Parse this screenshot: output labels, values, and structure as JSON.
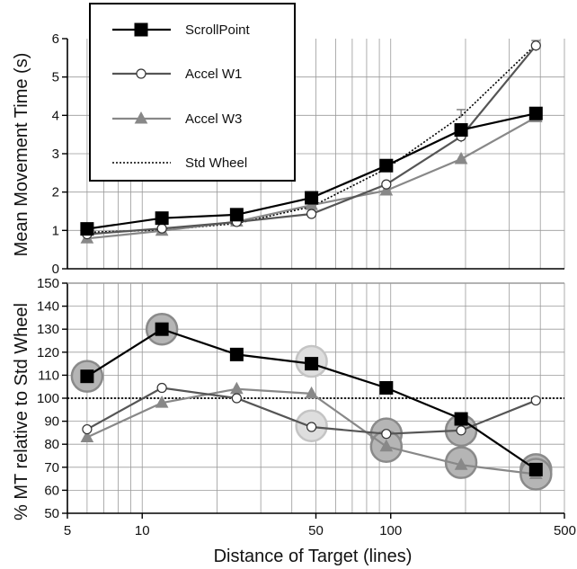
{
  "chart_data": [
    {
      "type": "line",
      "title": "",
      "xlabel": "Distance of Target (lines)",
      "ylabel": "Mean Movement Time (s)",
      "x_scale": "log",
      "xlim": [
        5,
        500
      ],
      "ylim": [
        0,
        6
      ],
      "yticks": [
        0,
        1,
        2,
        3,
        4,
        5,
        6
      ],
      "x": [
        6,
        12,
        24,
        48,
        96,
        192,
        384
      ],
      "series": [
        {
          "name": "ScrollPoint",
          "marker": "square-filled",
          "color": "#000000",
          "values": [
            1.04,
            1.32,
            1.41,
            1.85,
            2.69,
            3.62,
            4.05
          ]
        },
        {
          "name": "Accel W1",
          "marker": "circle-open",
          "color": "#555555",
          "values": [
            0.9,
            1.05,
            1.22,
            1.43,
            2.2,
            3.45,
            5.82
          ]
        },
        {
          "name": "Accel W3",
          "marker": "triangle-filled",
          "color": "#888888",
          "values": [
            0.79,
            0.99,
            1.23,
            1.66,
            2.04,
            2.86,
            3.95
          ]
        },
        {
          "name": "Std Wheel",
          "marker": "none",
          "color": "#000000",
          "dash": "dotted",
          "values": [
            0.95,
            1.01,
            1.18,
            1.62,
            2.61,
            3.98,
            5.85
          ]
        }
      ],
      "legend": "top-left"
    },
    {
      "type": "line",
      "title": "",
      "xlabel": "Distance of Target (lines)",
      "ylabel": "% MT relative to Std Wheel",
      "x_scale": "log",
      "xlim": [
        5,
        500
      ],
      "ylim": [
        50,
        150
      ],
      "yticks": [
        50,
        60,
        70,
        80,
        90,
        100,
        110,
        120,
        130,
        140,
        150
      ],
      "xticks": [
        5,
        10,
        50,
        100,
        500
      ],
      "xtick_labels": [
        "5",
        "10",
        "50",
        "100",
        "500"
      ],
      "x": [
        6,
        12,
        24,
        48,
        96,
        192,
        384
      ],
      "reference_line": 100,
      "series": [
        {
          "name": "ScrollPoint",
          "marker": "square-filled",
          "color": "#000000",
          "values": [
            109.5,
            130.0,
            119.0,
            115.0,
            104.5,
            91.0,
            69.0
          ]
        },
        {
          "name": "Accel W1",
          "marker": "circle-open",
          "color": "#555555",
          "values": [
            86.5,
            104.5,
            100.0,
            87.5,
            84.5,
            86.0,
            99.0
          ]
        },
        {
          "name": "Accel W3",
          "marker": "triangle-filled",
          "color": "#888888",
          "values": [
            83.0,
            98.0,
            104.0,
            102.0,
            79.0,
            71.0,
            67.0
          ]
        }
      ],
      "highlights": [
        {
          "x": 6,
          "y": 109.5,
          "shade": "dark"
        },
        {
          "x": 12,
          "y": 130.0,
          "shade": "dark"
        },
        {
          "x": 48,
          "y": 116.0,
          "shade": "light"
        },
        {
          "x": 48,
          "y": 88.0,
          "shade": "light"
        },
        {
          "x": 96,
          "y": 84.5,
          "shade": "dark"
        },
        {
          "x": 96,
          "y": 79.0,
          "shade": "dark"
        },
        {
          "x": 192,
          "y": 86.0,
          "shade": "dark"
        },
        {
          "x": 192,
          "y": 72.0,
          "shade": "dark"
        },
        {
          "x": 384,
          "y": 69.0,
          "shade": "dark"
        },
        {
          "x": 384,
          "y": 67.0,
          "shade": "dark"
        }
      ]
    }
  ]
}
